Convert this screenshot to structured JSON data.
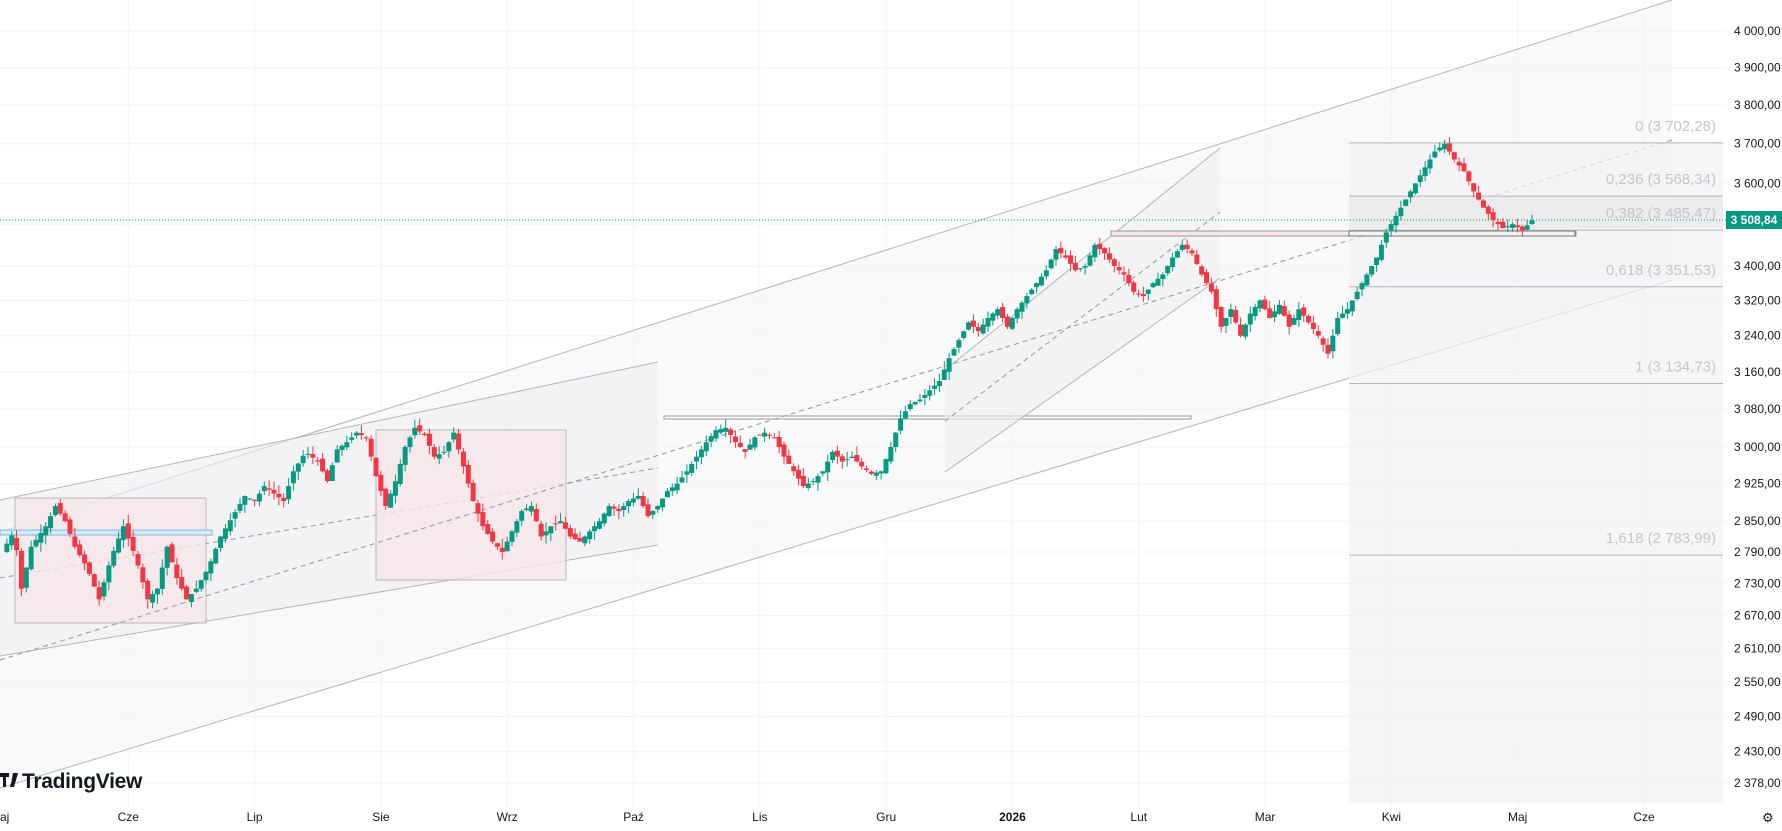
{
  "app": {
    "brand": "TradingView",
    "brand_icon": "tradingview-logo-icon"
  },
  "current_price": {
    "label": "3 508,84",
    "value": 3508.84,
    "color": "#089981"
  },
  "colors": {
    "up": "#089981",
    "down": "#f23645",
    "grid": "#f0f3fa",
    "axis_text": "#131722",
    "fib": "#c4c6cc"
  },
  "fib_levels": [
    {
      "label": "0 (3 702,28)",
      "value": 3702.28
    },
    {
      "label": "0,236 (3 568,34)",
      "value": 3568.34
    },
    {
      "label": "0,382 (3 485,47)",
      "value": 3485.47
    },
    {
      "label": "0,618 (3 351,53)",
      "value": 3351.53
    },
    {
      "label": "1 (3 134,73)",
      "value": 3134.73
    },
    {
      "label": "1,618 (2 783,99)",
      "value": 2783.99
    }
  ],
  "chart_data": {
    "type": "candlestick",
    "y_ticks": [
      "4 000,00",
      "3 900,00",
      "3 800,00",
      "3 700,00",
      "3 600,00",
      "3 500,00",
      "3 400,00",
      "3 320,00",
      "3 240,00",
      "3 160,00",
      "3 080,00",
      "3 000,00",
      "2 925,00",
      "2 850,00",
      "2 790,00",
      "2 730,00",
      "2 670,00",
      "2 610,00",
      "2 550,00",
      "2 490,00",
      "2 430,00",
      "2 378,00"
    ],
    "x_ticks": [
      {
        "label": "aj",
        "bold": false
      },
      {
        "label": "Cze",
        "bold": false
      },
      {
        "label": "Lip",
        "bold": false
      },
      {
        "label": "Sie",
        "bold": false
      },
      {
        "label": "Wrz",
        "bold": false
      },
      {
        "label": "Paź",
        "bold": false
      },
      {
        "label": "Lis",
        "bold": false
      },
      {
        "label": "Gru",
        "bold": false
      },
      {
        "label": "2026",
        "bold": true
      },
      {
        "label": "Lut",
        "bold": false
      },
      {
        "label": "Mar",
        "bold": false
      },
      {
        "label": "Kwi",
        "bold": false
      },
      {
        "label": "Maj",
        "bold": false
      },
      {
        "label": "Cze",
        "bold": false
      }
    ],
    "log_scale": true,
    "y_range": [
      2350,
      4050
    ],
    "close_path": [
      [
        0,
        2790
      ],
      [
        5,
        2830
      ],
      [
        8,
        2720
      ],
      [
        12,
        2800
      ],
      [
        18,
        2840
      ],
      [
        22,
        2880
      ],
      [
        26,
        2850
      ],
      [
        30,
        2800
      ],
      [
        35,
        2760
      ],
      [
        40,
        2700
      ],
      [
        45,
        2780
      ],
      [
        50,
        2840
      ],
      [
        55,
        2780
      ],
      [
        60,
        2700
      ],
      [
        64,
        2720
      ],
      [
        68,
        2800
      ],
      [
        72,
        2740
      ],
      [
        76,
        2700
      ],
      [
        80,
        2720
      ],
      [
        85,
        2760
      ],
      [
        90,
        2820
      ],
      [
        95,
        2860
      ],
      [
        100,
        2900
      ],
      [
        104,
        2890
      ],
      [
        108,
        2920
      ],
      [
        112,
        2905
      ],
      [
        116,
        2890
      ],
      [
        120,
        2950
      ],
      [
        125,
        2990
      ],
      [
        130,
        2970
      ],
      [
        134,
        2930
      ],
      [
        138,
        2995
      ],
      [
        142,
        3010
      ],
      [
        146,
        3030
      ],
      [
        150,
        3020
      ],
      [
        154,
        2940
      ],
      [
        158,
        2880
      ],
      [
        162,
        2930
      ],
      [
        166,
        3000
      ],
      [
        170,
        3040
      ],
      [
        174,
        3025
      ],
      [
        178,
        2980
      ],
      [
        182,
        2990
      ],
      [
        186,
        3030
      ],
      [
        190,
        2960
      ],
      [
        194,
        2890
      ],
      [
        198,
        2840
      ],
      [
        202,
        2810
      ],
      [
        206,
        2790
      ],
      [
        210,
        2830
      ],
      [
        214,
        2870
      ],
      [
        218,
        2880
      ],
      [
        222,
        2820
      ],
      [
        226,
        2840
      ],
      [
        230,
        2850
      ],
      [
        234,
        2820
      ],
      [
        238,
        2810
      ],
      [
        242,
        2830
      ],
      [
        246,
        2850
      ],
      [
        250,
        2880
      ],
      [
        254,
        2870
      ],
      [
        258,
        2890
      ],
      [
        262,
        2900
      ],
      [
        266,
        2860
      ],
      [
        270,
        2880
      ],
      [
        274,
        2910
      ],
      [
        278,
        2925
      ],
      [
        282,
        2950
      ],
      [
        286,
        2980
      ],
      [
        290,
        3010
      ],
      [
        294,
        3035
      ],
      [
        298,
        3040
      ],
      [
        302,
        3010
      ],
      [
        306,
        2990
      ],
      [
        310,
        3020
      ],
      [
        314,
        3030
      ],
      [
        318,
        3020
      ],
      [
        322,
        2980
      ],
      [
        326,
        2950
      ],
      [
        330,
        2920
      ],
      [
        334,
        2930
      ],
      [
        338,
        2950
      ],
      [
        342,
        2990
      ],
      [
        346,
        2970
      ],
      [
        350,
        2980
      ],
      [
        354,
        2960
      ],
      [
        358,
        2945
      ],
      [
        362,
        2950
      ],
      [
        366,
        3000
      ],
      [
        370,
        3060
      ],
      [
        374,
        3090
      ],
      [
        378,
        3100
      ],
      [
        382,
        3120
      ],
      [
        386,
        3140
      ],
      [
        390,
        3190
      ],
      [
        394,
        3230
      ],
      [
        398,
        3270
      ],
      [
        402,
        3250
      ],
      [
        406,
        3280
      ],
      [
        410,
        3300
      ],
      [
        414,
        3260
      ],
      [
        418,
        3300
      ],
      [
        422,
        3330
      ],
      [
        426,
        3360
      ],
      [
        430,
        3390
      ],
      [
        434,
        3440
      ],
      [
        438,
        3420
      ],
      [
        442,
        3390
      ],
      [
        446,
        3400
      ],
      [
        450,
        3450
      ],
      [
        454,
        3430
      ],
      [
        458,
        3400
      ],
      [
        462,
        3380
      ],
      [
        466,
        3340
      ],
      [
        470,
        3330
      ],
      [
        474,
        3360
      ],
      [
        478,
        3380
      ],
      [
        482,
        3420
      ],
      [
        486,
        3450
      ],
      [
        490,
        3430
      ],
      [
        494,
        3380
      ],
      [
        498,
        3340
      ],
      [
        502,
        3260
      ],
      [
        506,
        3300
      ],
      [
        510,
        3240
      ],
      [
        514,
        3290
      ],
      [
        518,
        3320
      ],
      [
        522,
        3280
      ],
      [
        526,
        3310
      ],
      [
        530,
        3260
      ],
      [
        534,
        3300
      ],
      [
        538,
        3270
      ],
      [
        542,
        3240
      ],
      [
        546,
        3200
      ],
      [
        550,
        3280
      ],
      [
        554,
        3300
      ],
      [
        558,
        3340
      ],
      [
        562,
        3380
      ],
      [
        566,
        3420
      ],
      [
        570,
        3480
      ],
      [
        574,
        3520
      ],
      [
        578,
        3560
      ],
      [
        582,
        3600
      ],
      [
        586,
        3640
      ],
      [
        590,
        3680
      ],
      [
        594,
        3700
      ],
      [
        598,
        3660
      ],
      [
        602,
        3630
      ],
      [
        606,
        3580
      ],
      [
        610,
        3540
      ],
      [
        614,
        3510
      ],
      [
        618,
        3490
      ],
      [
        622,
        3500
      ],
      [
        626,
        3485
      ],
      [
        630,
        3508.84
      ]
    ]
  }
}
